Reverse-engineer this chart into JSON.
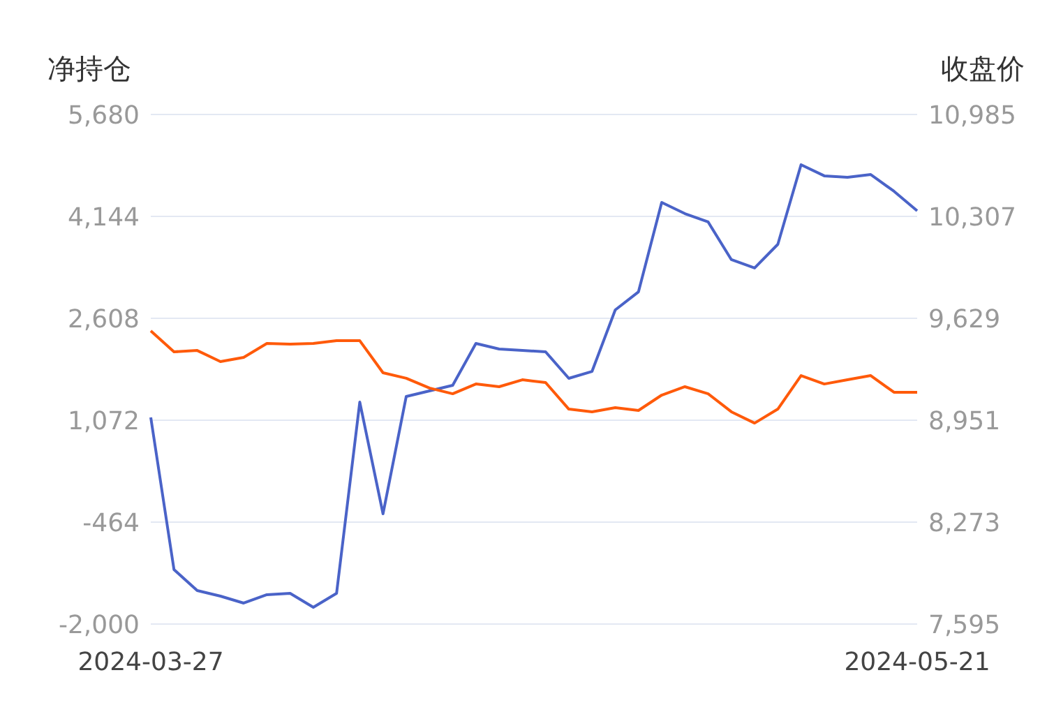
{
  "chart_data": {
    "type": "line",
    "ylabel": "净持仓",
    "y2label": "收盘价",
    "categories": [
      "2024-03-27",
      null,
      null,
      null,
      null,
      null,
      null,
      null,
      null,
      null,
      null,
      null,
      null,
      null,
      null,
      null,
      null,
      null,
      null,
      null,
      null,
      null,
      null,
      null,
      null,
      null,
      null,
      null,
      null,
      null,
      null,
      null,
      null,
      "2024-05-21"
    ],
    "series": [
      {
        "color": "#4a63c8",
        "values": [
          1114,
          -1179,
          -1495,
          -1579,
          -1684,
          -1558,
          -1537,
          -1748,
          -1537,
          1345,
          -338,
          1430,
          1514,
          1598,
          2229,
          2145,
          2124,
          2103,
          1703,
          1808,
          2734,
          3007,
          4354,
          4186,
          4060,
          3492,
          3366,
          3723,
          4923,
          4755,
          4733,
          4775,
          4523,
          4228
        ]
      },
      {
        "color": "#ff5a0a",
        "axis": "y2",
        "values": [
          9545,
          9406,
          9415,
          9341,
          9369,
          9462,
          9457,
          9462,
          9480,
          9480,
          9267,
          9230,
          9165,
          9127,
          9192,
          9174,
          9220,
          9202,
          9025,
          9007,
          9035,
          9016,
          9118,
          9174,
          9127,
          9007,
          8932,
          9025,
          9248,
          9192,
          9220,
          9248,
          9137,
          9137
        ]
      }
    ],
    "ylim": [
      -2000,
      5680
    ],
    "yticks": [
      {
        "value": -2000,
        "label": "-2,000"
      },
      {
        "value": -464,
        "label": "-464"
      },
      {
        "value": 1072,
        "label": "1,072"
      },
      {
        "value": 2608,
        "label": "2,608"
      },
      {
        "value": 4144,
        "label": "4,144"
      },
      {
        "value": 5680,
        "label": "5,680"
      }
    ],
    "y2lim": [
      7595,
      10985
    ],
    "y2ticks": [
      {
        "value": 7595,
        "label": "7,595"
      },
      {
        "value": 8273,
        "label": "8,273"
      },
      {
        "value": 8951,
        "label": "8,951"
      },
      {
        "value": 9629,
        "label": "9,629"
      },
      {
        "value": 10307,
        "label": "10,307"
      },
      {
        "value": 10985,
        "label": "10,985"
      }
    ],
    "grid": "y",
    "legend": false,
    "marker": "none",
    "line_style": "solid"
  }
}
